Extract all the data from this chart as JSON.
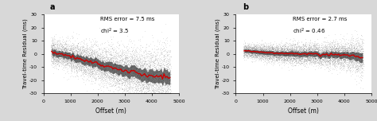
{
  "panel_a": {
    "label": "a",
    "rms_error": "RMS error = 7.5 ms",
    "chi2": "chi$^2$ = 3.5",
    "scatter_color": "#777777",
    "mean_line_color": "#cc0000",
    "std_band_color": "#333333",
    "mean_x": [
      300,
      500,
      800,
      1200,
      1600,
      2000,
      2500,
      3000,
      3500,
      4000,
      4300,
      4500,
      4600
    ],
    "mean_y": [
      1.5,
      0.5,
      -1.0,
      -3.0,
      -5.5,
      -8.0,
      -10.5,
      -13.0,
      -15.5,
      -17.5,
      -18.5,
      -19.0,
      -19.5
    ],
    "spread_x": [
      300,
      500,
      1000,
      2000,
      3000,
      4000,
      4600
    ],
    "spread_y": [
      3.5,
      3.0,
      3.5,
      4.5,
      5.5,
      7.0,
      8.5
    ],
    "noise_scale": 1.5
  },
  "panel_b": {
    "label": "b",
    "rms_error": "RMS error = 2.7 ms",
    "chi2": "chi$^2$ = 0.46",
    "scatter_color": "#777777",
    "mean_line_color": "#cc0000",
    "std_band_color": "#333333",
    "mean_x": [
      300,
      500,
      800,
      1200,
      1800,
      2500,
      3200,
      3800,
      4200,
      4500,
      4600
    ],
    "mean_y": [
      2.5,
      2.0,
      1.5,
      1.0,
      0.5,
      0.0,
      -0.5,
      -1.0,
      -1.5,
      -2.0,
      -2.5
    ],
    "spread_x": [
      300,
      500,
      1000,
      2000,
      3000,
      4000,
      4600
    ],
    "spread_y": [
      2.5,
      2.5,
      3.0,
      3.5,
      4.0,
      5.0,
      7.0
    ],
    "noise_scale": 1.0
  },
  "xlim": [
    0,
    5000
  ],
  "ylim": [
    -30,
    30
  ],
  "xticks": [
    0,
    1000,
    2000,
    3000,
    4000,
    5000
  ],
  "yticks": [
    -30,
    -20,
    -10,
    0,
    10,
    20,
    30
  ],
  "xlabel": "Offset (m)",
  "ylabel": "Travel-time Residual (ms)",
  "n_points": 8000,
  "scatter_alpha": 0.12,
  "scatter_size": 0.5,
  "background_color": "#ffffff",
  "fig_bg": "#d8d8d8"
}
